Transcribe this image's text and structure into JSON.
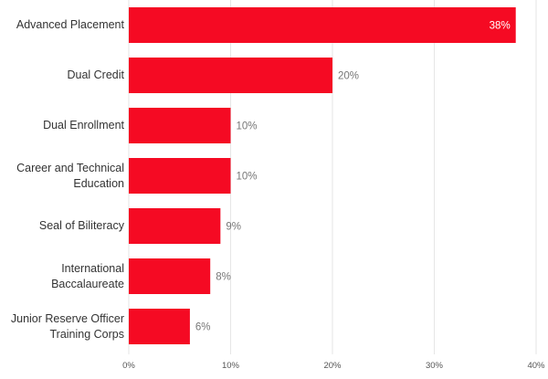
{
  "chart_data": {
    "type": "bar",
    "orientation": "horizontal",
    "categories": [
      "Advanced Placement",
      "Dual Credit",
      "Dual Enrollment",
      "Career and Technical Education",
      "Seal of Biliteracy",
      "International Baccalaureate",
      "Junior Reserve Officer Training Corps"
    ],
    "category_lines": [
      [
        "Advanced Placement"
      ],
      [
        "Dual Credit"
      ],
      [
        "Dual Enrollment"
      ],
      [
        "Career and Technical",
        "Education"
      ],
      [
        "Seal of Biliteracy"
      ],
      [
        "International",
        "Baccalaureate"
      ],
      [
        "Junior Reserve Officer",
        "Training Corps"
      ]
    ],
    "values": [
      38,
      20,
      10,
      10,
      9,
      8,
      6
    ],
    "value_labels": [
      "38%",
      "20%",
      "10%",
      "10%",
      "9%",
      "8%",
      "6%"
    ],
    "xlim": [
      0,
      40
    ],
    "xticks": [
      0,
      10,
      20,
      30,
      40
    ],
    "xtick_labels": [
      "0%",
      "10%",
      "20%",
      "30%",
      "40%"
    ],
    "title": "",
    "xlabel": "",
    "ylabel": "",
    "grid": true,
    "legend": "none",
    "bar_color": "#f50a23",
    "grid_color": "#e6e6e6"
  }
}
